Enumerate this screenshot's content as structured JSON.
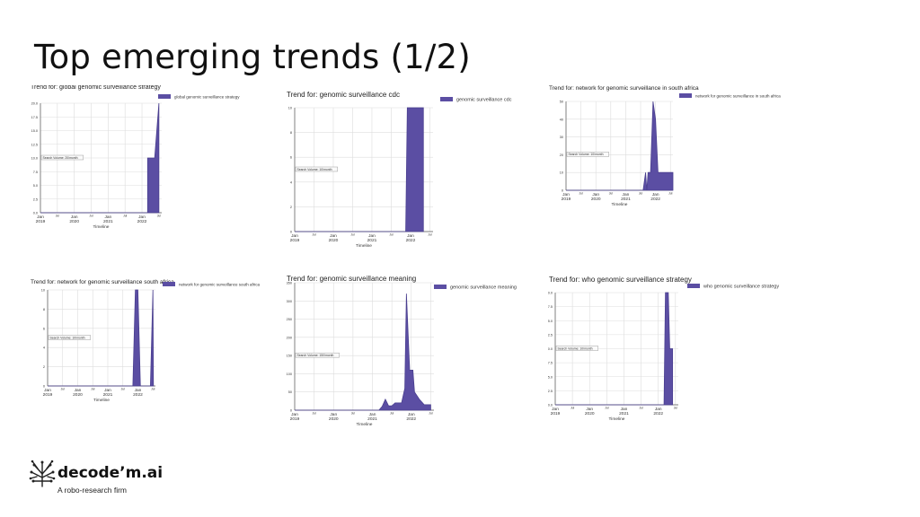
{
  "slide": {
    "title": "Top emerging trends (1/2)"
  },
  "brand": {
    "name": "decode’m.ai",
    "tagline": "A robo-research firm",
    "icon": "brain-circuit-icon"
  },
  "colors": {
    "fill": "#5b4ea3",
    "stroke": "#4a3f8f",
    "grid": "#dddddd",
    "axis": "#555555"
  },
  "chart_data": [
    {
      "type": "area",
      "title": "Trend for: global genomic surveillance strategy",
      "series_name": "global genomic surveillance strategy",
      "annotation": "Search Volume: 20/month",
      "xlabel": "Timeline",
      "ylabel": "",
      "ylim": [
        0,
        20
      ],
      "yticks": [
        "0.0",
        "2.5",
        "5.0",
        "7.5",
        "10.0",
        "12.5",
        "15.0",
        "17.5",
        "20.0"
      ],
      "xticks": [
        {
          "m": 0,
          "top": "Jan",
          "bottom": "2019"
        },
        {
          "m": 6,
          "top": "Jul",
          "bottom": ""
        },
        {
          "m": 12,
          "top": "Jan",
          "bottom": "2020"
        },
        {
          "m": 18,
          "top": "Jul",
          "bottom": ""
        },
        {
          "m": 24,
          "top": "Jan",
          "bottom": "2021"
        },
        {
          "m": 30,
          "top": "Jul",
          "bottom": ""
        },
        {
          "m": 36,
          "top": "Jan",
          "bottom": "2022"
        },
        {
          "m": 42,
          "top": "Jul",
          "bottom": ""
        }
      ],
      "xlim": [
        0,
        43
      ],
      "points": [
        [
          0,
          0
        ],
        [
          38,
          0
        ],
        [
          38,
          10
        ],
        [
          40.5,
          10
        ],
        [
          42,
          20
        ]
      ]
    },
    {
      "type": "area",
      "title": "Trend for: genomic surveillance cdc",
      "series_name": "genomic surveillance cdc",
      "annotation": "Search Volume: 10/month",
      "xlabel": "Timeline",
      "ylabel": "",
      "ylim": [
        0,
        10
      ],
      "yticks": [
        "0",
        "2",
        "4",
        "6",
        "8",
        "10"
      ],
      "xticks": [
        {
          "m": 0,
          "top": "Jan",
          "bottom": "2019"
        },
        {
          "m": 6,
          "top": "Jul",
          "bottom": ""
        },
        {
          "m": 12,
          "top": "Jan",
          "bottom": "2020"
        },
        {
          "m": 18,
          "top": "Jul",
          "bottom": ""
        },
        {
          "m": 24,
          "top": "Jan",
          "bottom": "2021"
        },
        {
          "m": 30,
          "top": "Jul",
          "bottom": ""
        },
        {
          "m": 36,
          "top": "Jan",
          "bottom": "2022"
        },
        {
          "m": 42,
          "top": "Jul",
          "bottom": ""
        }
      ],
      "xlim": [
        0,
        43
      ],
      "points": [
        [
          0,
          0
        ],
        [
          34.5,
          0
        ],
        [
          35,
          10
        ],
        [
          40,
          10
        ],
        [
          40,
          0
        ]
      ]
    },
    {
      "type": "area",
      "title": "Trend for: network for genomic surveillance in south africa",
      "series_name": "network for genomic surveillance in south africa",
      "annotation": "Search Volume: 10/month",
      "xlabel": "Timeline",
      "ylabel": "",
      "ylim": [
        0,
        50
      ],
      "yticks": [
        "0",
        "10",
        "20",
        "30",
        "40",
        "50"
      ],
      "xticks": [
        {
          "m": 0,
          "top": "Jan",
          "bottom": "2019"
        },
        {
          "m": 6,
          "top": "Jul",
          "bottom": ""
        },
        {
          "m": 12,
          "top": "Jan",
          "bottom": "2020"
        },
        {
          "m": 18,
          "top": "Jul",
          "bottom": ""
        },
        {
          "m": 24,
          "top": "Jan",
          "bottom": "2021"
        },
        {
          "m": 30,
          "top": "Jul",
          "bottom": ""
        },
        {
          "m": 36,
          "top": "Jan",
          "bottom": "2022"
        },
        {
          "m": 42,
          "top": "Jul",
          "bottom": ""
        }
      ],
      "xlim": [
        0,
        43
      ],
      "points": [
        [
          0,
          0
        ],
        [
          31,
          0
        ],
        [
          32,
          10
        ],
        [
          32.5,
          0
        ],
        [
          33,
          10
        ],
        [
          34,
          10
        ],
        [
          35,
          50
        ],
        [
          36,
          40
        ],
        [
          37,
          10
        ],
        [
          43,
          10
        ],
        [
          43,
          0
        ]
      ]
    },
    {
      "type": "area",
      "title": "Trend for: network for genomic surveillance south africa",
      "series_name": "network for genomic surveillance south africa",
      "annotation": "Search Volume: 10/month",
      "xlabel": "Timeline",
      "ylabel": "",
      "ylim": [
        0,
        10
      ],
      "yticks": [
        "0",
        "2",
        "4",
        "6",
        "8",
        "10"
      ],
      "xticks": [
        {
          "m": 0,
          "top": "Jan",
          "bottom": "2019"
        },
        {
          "m": 6,
          "top": "Jul",
          "bottom": ""
        },
        {
          "m": 12,
          "top": "Jan",
          "bottom": "2020"
        },
        {
          "m": 18,
          "top": "Jul",
          "bottom": ""
        },
        {
          "m": 24,
          "top": "Jan",
          "bottom": "2021"
        },
        {
          "m": 30,
          "top": "Jul",
          "bottom": ""
        },
        {
          "m": 36,
          "top": "Jan",
          "bottom": "2022"
        },
        {
          "m": 42,
          "top": "Jul",
          "bottom": ""
        }
      ],
      "xlim": [
        0,
        43
      ],
      "points": [
        [
          0,
          0
        ],
        [
          34,
          0
        ],
        [
          35,
          10
        ],
        [
          36,
          10
        ],
        [
          37,
          0
        ],
        [
          41,
          0
        ],
        [
          42,
          10
        ],
        [
          42.2,
          0
        ]
      ]
    },
    {
      "type": "area",
      "title": "Trend for: genomic surveillance meaning",
      "series_name": "genomic surveillance meaning",
      "annotation": "Search Volume: 150/month",
      "xlabel": "Timeline",
      "ylabel": "",
      "ylim": [
        0,
        350
      ],
      "yticks": [
        "0",
        "50",
        "100",
        "150",
        "200",
        "250",
        "300",
        "350"
      ],
      "xticks": [
        {
          "m": 0,
          "top": "Jan",
          "bottom": "2019"
        },
        {
          "m": 6,
          "top": "Jul",
          "bottom": ""
        },
        {
          "m": 12,
          "top": "Jan",
          "bottom": "2020"
        },
        {
          "m": 18,
          "top": "Jul",
          "bottom": ""
        },
        {
          "m": 24,
          "top": "Jan",
          "bottom": "2021"
        },
        {
          "m": 30,
          "top": "Jul",
          "bottom": ""
        },
        {
          "m": 36,
          "top": "Jan",
          "bottom": "2022"
        },
        {
          "m": 42,
          "top": "Jul",
          "bottom": ""
        }
      ],
      "xlim": [
        0,
        43
      ],
      "points": [
        [
          0,
          0
        ],
        [
          26,
          0
        ],
        [
          27,
          10
        ],
        [
          28,
          30
        ],
        [
          29,
          12
        ],
        [
          30,
          12
        ],
        [
          31,
          20
        ],
        [
          32,
          20
        ],
        [
          33,
          20
        ],
        [
          34,
          60
        ],
        [
          34.5,
          320
        ],
        [
          35.5,
          110
        ],
        [
          36.5,
          110
        ],
        [
          37,
          50
        ],
        [
          38.5,
          30
        ],
        [
          40,
          15
        ],
        [
          42,
          15
        ],
        [
          42,
          0
        ]
      ]
    },
    {
      "type": "area",
      "title": "Trend for: who genomic surveillance strategy",
      "series_name": "who genomic surveillance strategy",
      "annotation": "Search Volume: 10/month",
      "xlabel": "Timeline",
      "ylabel": "",
      "ylim": [
        0,
        20
      ],
      "yticks": [
        "0.0",
        "2.5",
        "5.0",
        "7.5",
        "10.0",
        "12.5",
        "15.0",
        "17.5",
        "20.0"
      ],
      "xticks": [
        {
          "m": 0,
          "top": "Jan",
          "bottom": "2019"
        },
        {
          "m": 6,
          "top": "Jul",
          "bottom": ""
        },
        {
          "m": 12,
          "top": "Jan",
          "bottom": "2020"
        },
        {
          "m": 18,
          "top": "Jul",
          "bottom": ""
        },
        {
          "m": 24,
          "top": "Jan",
          "bottom": "2021"
        },
        {
          "m": 30,
          "top": "Jul",
          "bottom": ""
        },
        {
          "m": 36,
          "top": "Jan",
          "bottom": "2022"
        },
        {
          "m": 42,
          "top": "Jul",
          "bottom": ""
        }
      ],
      "xlim": [
        0,
        43
      ],
      "points": [
        [
          0,
          0
        ],
        [
          38,
          0
        ],
        [
          38.5,
          20
        ],
        [
          39.5,
          20
        ],
        [
          40,
          10
        ],
        [
          41,
          10
        ],
        [
          41,
          0
        ]
      ]
    }
  ]
}
